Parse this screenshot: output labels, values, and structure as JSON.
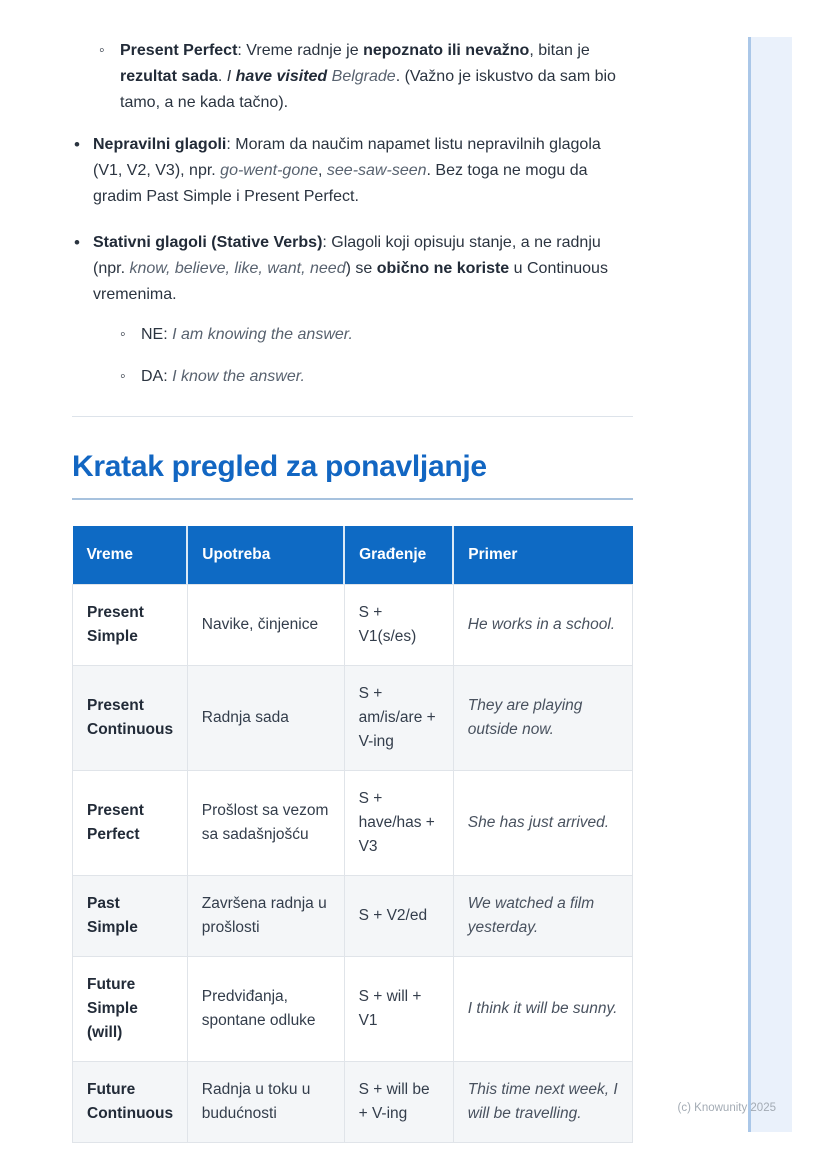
{
  "colors": {
    "accent_blue": "#1266c2",
    "table_header_bg": "#0e6ac4",
    "row_alt_bg": "#f4f6f8",
    "side_bar_fill": "#eaf1fb",
    "side_bar_edge": "#aac7e8"
  },
  "bullets": {
    "preamble_item": {
      "segments": [
        {
          "t": "Present Perfect",
          "b": true
        },
        {
          "t": ": Vreme radnje je "
        },
        {
          "t": "nepoznato ili nevažno",
          "b": true
        },
        {
          "t": ", bitan je "
        },
        {
          "t": "rezultat sada",
          "b": true
        },
        {
          "t": ". "
        },
        {
          "t": "I ",
          "i": true
        },
        {
          "t": "have visited",
          "b": true,
          "i": true
        },
        {
          "t": " Belgrade",
          "i": true,
          "m": true
        },
        {
          "t": ". (Važno je iskustvo da sam bio tamo, a ne kada tačno)."
        }
      ]
    },
    "main_items": [
      {
        "segments": [
          {
            "t": "Nepravilni glagoli",
            "b": true
          },
          {
            "t": ": Moram da naučim napamet listu nepravilnih glagola (V1, V2, V3), npr. "
          },
          {
            "t": "go-went-gone",
            "i": true,
            "m": true
          },
          {
            "t": ", "
          },
          {
            "t": "see-saw-seen",
            "i": true,
            "m": true
          },
          {
            "t": ". Bez toga ne mogu da gradim Past Simple i Present Perfect."
          }
        ]
      },
      {
        "segments": [
          {
            "t": "Stativni glagoli (Stative Verbs)",
            "b": true
          },
          {
            "t": ": Glagoli koji opisuju stanje, a ne radnju (npr. "
          },
          {
            "t": "know, believe, like, want, need",
            "i": true,
            "m": true
          },
          {
            "t": ") se "
          },
          {
            "t": "obično ne koriste",
            "b": true
          },
          {
            "t": " u Continuous vremenima."
          }
        ],
        "children": [
          {
            "segments": [
              {
                "t": "NE: "
              },
              {
                "t": "I am knowing the answer.",
                "i": true,
                "m": true
              }
            ]
          },
          {
            "segments": [
              {
                "t": "DA: "
              },
              {
                "t": "I know the answer.",
                "i": true,
                "m": true
              }
            ]
          }
        ]
      }
    ]
  },
  "section": {
    "heading": "Kratak pregled za ponavljanje"
  },
  "table": {
    "headers": [
      "Vreme",
      "Upotreba",
      "Građenje",
      "Primer"
    ],
    "rows": [
      {
        "vreme": "Present Simple",
        "upotreba": "Navike, činjenice",
        "gradjenje": "S + V1(s/es)",
        "primer": "He works in a school."
      },
      {
        "vreme": "Present Continuous",
        "upotreba": "Radnja sada",
        "gradjenje": "S + am/is/are + V-ing",
        "primer": "They are playing outside now."
      },
      {
        "vreme": "Present Perfect",
        "upotreba": "Prošlost sa vezom sa sadašnjošću",
        "gradjenje": "S + have/has + V3",
        "primer": "She has just arrived."
      },
      {
        "vreme": "Past Simple",
        "upotreba": "Završena radnja u prošlosti",
        "gradjenje": "S + V2/ed",
        "primer": "We watched a film yesterday."
      },
      {
        "vreme": "Future Simple (will)",
        "upotreba": "Predviđanja, spontane odluke",
        "gradjenje": "S + will + V1",
        "primer": "I think it will be sunny."
      },
      {
        "vreme": "Future Continuous",
        "upotreba": "Radnja u toku u budućnosti",
        "gradjenje": "S + will be + V-ing",
        "primer": "This time next week, I will be travelling."
      }
    ]
  },
  "footer": {
    "copyright": "(c) Knowunity 2025"
  }
}
